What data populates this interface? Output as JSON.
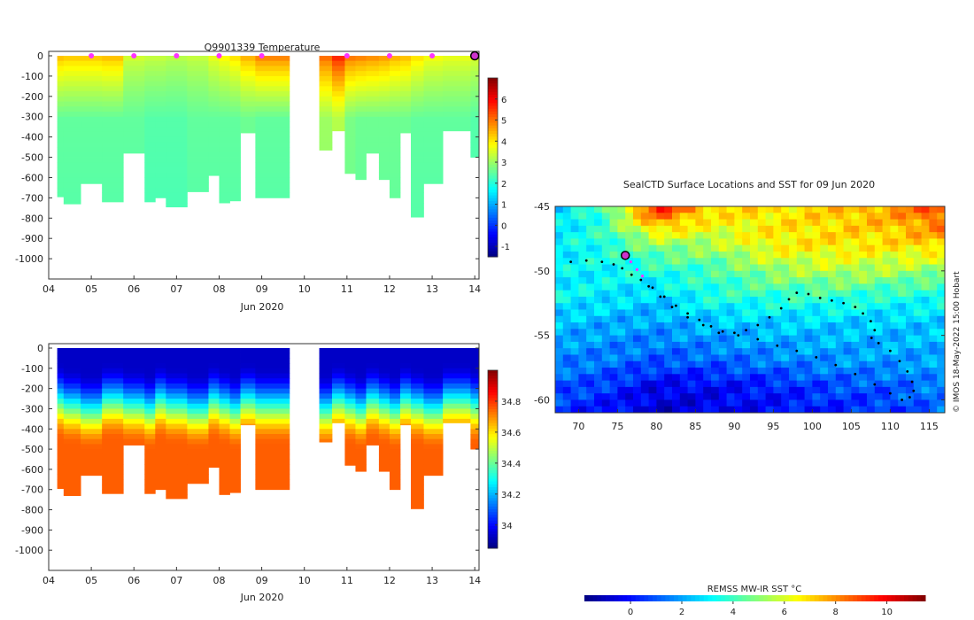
{
  "chart_data": [
    {
      "type": "heatmap",
      "title": "Q9901339  Temperature",
      "xlabel": "Jun 2020",
      "ylabel": "",
      "x_ticks": [
        "04",
        "05",
        "06",
        "07",
        "08",
        "09",
        "10",
        "11",
        "12",
        "13",
        "14"
      ],
      "xlim": [
        4,
        14.1
      ],
      "ylim": [
        -1100,
        0
      ],
      "y_ticks": [
        0,
        -100,
        -200,
        -300,
        -400,
        -500,
        -600,
        -700,
        -800,
        -900,
        -1000
      ],
      "colorbar": {
        "range": [
          -1.5,
          7.0
        ],
        "ticks": [
          -1,
          0,
          1,
          2,
          3,
          4,
          5,
          6
        ]
      },
      "marker_days": [
        5.0,
        6.0,
        7.0,
        8.0,
        9.0,
        11.0,
        12.0,
        13.0
      ],
      "latest_profile_day": 14.0,
      "profiles": [
        {
          "t0": 4.2,
          "t1": 4.35,
          "depth": 695,
          "surf": 4.3,
          "deep": 2.5
        },
        {
          "t0": 4.35,
          "t1": 4.75,
          "depth": 730,
          "surf": 4.2,
          "deep": 2.5
        },
        {
          "t0": 4.75,
          "t1": 5.25,
          "depth": 630,
          "surf": 4.2,
          "deep": 2.5
        },
        {
          "t0": 5.25,
          "t1": 5.75,
          "depth": 720,
          "surf": 4.3,
          "deep": 2.5
        },
        {
          "t0": 5.75,
          "t1": 6.25,
          "depth": 480,
          "surf": 3.4,
          "deep": 2.5
        },
        {
          "t0": 6.25,
          "t1": 6.5,
          "depth": 720,
          "surf": 3.3,
          "deep": 2.4
        },
        {
          "t0": 6.5,
          "t1": 6.75,
          "depth": 700,
          "surf": 3.3,
          "deep": 2.4
        },
        {
          "t0": 6.75,
          "t1": 7.25,
          "depth": 745,
          "surf": 3.2,
          "deep": 2.4
        },
        {
          "t0": 7.25,
          "t1": 7.75,
          "depth": 670,
          "surf": 3.3,
          "deep": 2.5
        },
        {
          "t0": 7.75,
          "t1": 8.0,
          "depth": 590,
          "surf": 3.6,
          "deep": 2.5
        },
        {
          "t0": 8.0,
          "t1": 8.25,
          "depth": 725,
          "surf": 3.8,
          "deep": 2.5
        },
        {
          "t0": 8.25,
          "t1": 8.5,
          "depth": 715,
          "surf": 4.0,
          "deep": 2.5
        },
        {
          "t0": 8.5,
          "t1": 8.85,
          "depth": 380,
          "surf": 4.4,
          "deep": 2.6
        },
        {
          "t0": 8.85,
          "t1": 9.65,
          "depth": 700,
          "surf": 4.8,
          "deep": 2.5
        },
        {
          "t0": 10.35,
          "t1": 10.65,
          "depth": 465,
          "surf": 5.0,
          "deep": 3.0
        },
        {
          "t0": 10.65,
          "t1": 10.95,
          "depth": 370,
          "surf": 5.6,
          "deep": 3.2
        },
        {
          "t0": 10.95,
          "t1": 11.2,
          "depth": 580,
          "surf": 4.9,
          "deep": 2.7
        },
        {
          "t0": 11.2,
          "t1": 11.45,
          "depth": 610,
          "surf": 4.8,
          "deep": 2.6
        },
        {
          "t0": 11.45,
          "t1": 11.75,
          "depth": 480,
          "surf": 4.7,
          "deep": 2.6
        },
        {
          "t0": 11.75,
          "t1": 12.0,
          "depth": 610,
          "surf": 4.6,
          "deep": 2.6
        },
        {
          "t0": 12.0,
          "t1": 12.25,
          "depth": 700,
          "surf": 4.4,
          "deep": 2.6
        },
        {
          "t0": 12.25,
          "t1": 12.5,
          "depth": 380,
          "surf": 4.3,
          "deep": 2.6
        },
        {
          "t0": 12.5,
          "t1": 12.8,
          "depth": 795,
          "surf": 4.0,
          "deep": 2.5
        },
        {
          "t0": 12.8,
          "t1": 13.25,
          "depth": 630,
          "surf": 3.7,
          "deep": 2.5
        },
        {
          "t0": 13.25,
          "t1": 13.9,
          "depth": 370,
          "surf": 3.6,
          "deep": 2.5
        },
        {
          "t0": 13.9,
          "t1": 14.1,
          "depth": 500,
          "surf": 3.5,
          "deep": 2.4
        }
      ]
    },
    {
      "type": "heatmap",
      "title": "",
      "xlabel": "Jun 2020",
      "ylabel": "",
      "x_ticks": [
        "04",
        "05",
        "06",
        "07",
        "08",
        "09",
        "10",
        "11",
        "12",
        "13",
        "14"
      ],
      "xlim": [
        4,
        14.1
      ],
      "ylim": [
        -1100,
        0
      ],
      "y_ticks": [
        0,
        -100,
        -200,
        -300,
        -400,
        -500,
        -600,
        -700,
        -800,
        -900,
        -1000
      ],
      "colorbar": {
        "range": [
          33.85,
          35.0
        ],
        "ticks": [
          34,
          34.2,
          34.4,
          34.6,
          34.8
        ]
      },
      "profiles_note": "salinity, same profile set as temperature panel",
      "surface_value": 33.93,
      "deep_value": 34.75
    },
    {
      "type": "heatmap",
      "title": "SealCTD Surface Locations and SST for 09 Jun 2020",
      "xlabel": "",
      "ylabel": "",
      "x_ticks": [
        70,
        75,
        80,
        85,
        90,
        95,
        100,
        105,
        110,
        115
      ],
      "y_ticks": [
        -45,
        -50,
        -55,
        -60
      ],
      "xlim": [
        67,
        117
      ],
      "ylim": [
        -61,
        -45
      ],
      "credit": "© IMOS 18-May-2022 15:00 Hobart",
      "colorbar": {
        "label": "REMSS MW-IR SST °C",
        "range": [
          -1.8,
          11.5
        ],
        "ticks": [
          0,
          2,
          4,
          6,
          8,
          10
        ]
      },
      "latest_location": [
        76.0,
        -48.8
      ],
      "track_recent": [
        [
          76.0,
          -48.8
        ],
        [
          76.7,
          -49.3
        ],
        [
          77.5,
          -49.9
        ],
        [
          78.2,
          -50.4
        ]
      ],
      "track_lon_lat": [
        [
          69.0,
          -49.3
        ],
        [
          71.0,
          -49.2
        ],
        [
          73.0,
          -49.3
        ],
        [
          74.5,
          -49.5
        ],
        [
          75.6,
          -49.8
        ],
        [
          76.8,
          -50.3
        ],
        [
          78.0,
          -50.7
        ],
        [
          79.5,
          -51.3
        ],
        [
          81.0,
          -52.0
        ],
        [
          82.5,
          -52.7
        ],
        [
          84.0,
          -53.3
        ],
        [
          85.5,
          -53.8
        ],
        [
          87.0,
          -54.3
        ],
        [
          88.5,
          -54.7
        ],
        [
          90.0,
          -54.8
        ],
        [
          91.5,
          -54.6
        ],
        [
          93.0,
          -54.2
        ],
        [
          94.5,
          -53.6
        ],
        [
          96.0,
          -52.9
        ],
        [
          97.0,
          -52.2
        ],
        [
          98.0,
          -51.7
        ],
        [
          99.5,
          -51.8
        ],
        [
          101.0,
          -52.1
        ],
        [
          102.5,
          -52.3
        ],
        [
          104.0,
          -52.5
        ],
        [
          105.5,
          -52.8
        ],
        [
          106.5,
          -53.3
        ],
        [
          107.5,
          -53.9
        ],
        [
          108.0,
          -54.6
        ],
        [
          107.6,
          -55.2
        ],
        [
          108.5,
          -55.6
        ],
        [
          110.0,
          -56.2
        ],
        [
          111.2,
          -57.0
        ],
        [
          112.2,
          -57.8
        ],
        [
          112.8,
          -58.6
        ],
        [
          113.0,
          -59.3
        ],
        [
          112.5,
          -59.8
        ],
        [
          111.5,
          -60.0
        ],
        [
          110.0,
          -59.5
        ],
        [
          108.0,
          -58.8
        ],
        [
          105.5,
          -58.0
        ],
        [
          103.0,
          -57.3
        ],
        [
          100.5,
          -56.7
        ],
        [
          98.0,
          -56.2
        ],
        [
          95.5,
          -55.8
        ],
        [
          93.0,
          -55.3
        ],
        [
          90.5,
          -55.0
        ],
        [
          88.0,
          -54.8
        ],
        [
          86.0,
          -54.2
        ],
        [
          84.0,
          -53.6
        ],
        [
          82.0,
          -52.8
        ],
        [
          80.5,
          -52.0
        ],
        [
          79.0,
          -51.2
        ]
      ],
      "sst_anchors": [
        [
          67,
          -45,
          2.6
        ],
        [
          73,
          -45,
          4.0
        ],
        [
          80,
          -45,
          9.8
        ],
        [
          87,
          -45,
          7.2
        ],
        [
          95,
          -45,
          6.8
        ],
        [
          103,
          -45,
          7.2
        ],
        [
          110,
          -45,
          7.8
        ],
        [
          117,
          -45,
          9.2
        ],
        [
          67,
          -48,
          3.0
        ],
        [
          73,
          -48,
          3.6
        ],
        [
          80,
          -48,
          5.0
        ],
        [
          87,
          -48,
          5.4
        ],
        [
          95,
          -48,
          6.6
        ],
        [
          103,
          -48,
          6.8
        ],
        [
          110,
          -48,
          6.8
        ],
        [
          117,
          -48,
          7.2
        ],
        [
          67,
          -50,
          3.0
        ],
        [
          73,
          -50,
          3.2
        ],
        [
          80,
          -50,
          3.6
        ],
        [
          87,
          -50,
          4.0
        ],
        [
          95,
          -50,
          5.2
        ],
        [
          103,
          -50,
          5.6
        ],
        [
          110,
          -50,
          5.4
        ],
        [
          117,
          -50,
          5.0
        ],
        [
          67,
          -52,
          3.2
        ],
        [
          73,
          -52,
          3.0
        ],
        [
          80,
          -52,
          2.6
        ],
        [
          87,
          -52,
          3.6
        ],
        [
          95,
          -52,
          3.8
        ],
        [
          103,
          -52,
          3.9
        ],
        [
          110,
          -52,
          3.6
        ],
        [
          117,
          -52,
          3.4
        ],
        [
          67,
          -54,
          2.4
        ],
        [
          73,
          -54,
          2.2
        ],
        [
          80,
          -54,
          2.0
        ],
        [
          87,
          -54,
          2.4
        ],
        [
          95,
          -54,
          2.6
        ],
        [
          103,
          -54,
          2.6
        ],
        [
          110,
          -54,
          2.5
        ],
        [
          117,
          -54,
          2.6
        ],
        [
          67,
          -57,
          1.6
        ],
        [
          73,
          -57,
          1.4
        ],
        [
          80,
          -57,
          1.0
        ],
        [
          87,
          -57,
          1.1
        ],
        [
          95,
          -57,
          1.5
        ],
        [
          103,
          -57,
          1.8
        ],
        [
          110,
          -57,
          1.9
        ],
        [
          117,
          -57,
          2.0
        ],
        [
          67,
          -59,
          1.0
        ],
        [
          73,
          -59,
          0.6
        ],
        [
          80,
          -59,
          -0.4
        ],
        [
          87,
          -59,
          -0.2
        ],
        [
          95,
          -59,
          0.2
        ],
        [
          103,
          -59,
          0.8
        ],
        [
          110,
          -59,
          1.0
        ],
        [
          117,
          -59,
          1.6
        ],
        [
          67,
          -61,
          0.4
        ],
        [
          73,
          -61,
          0.0
        ],
        [
          80,
          -61,
          -0.8
        ],
        [
          87,
          -61,
          -0.5
        ],
        [
          95,
          -61,
          -0.1
        ],
        [
          103,
          -61,
          0.2
        ],
        [
          110,
          -61,
          0.5
        ],
        [
          117,
          -61,
          1.2
        ]
      ]
    }
  ]
}
